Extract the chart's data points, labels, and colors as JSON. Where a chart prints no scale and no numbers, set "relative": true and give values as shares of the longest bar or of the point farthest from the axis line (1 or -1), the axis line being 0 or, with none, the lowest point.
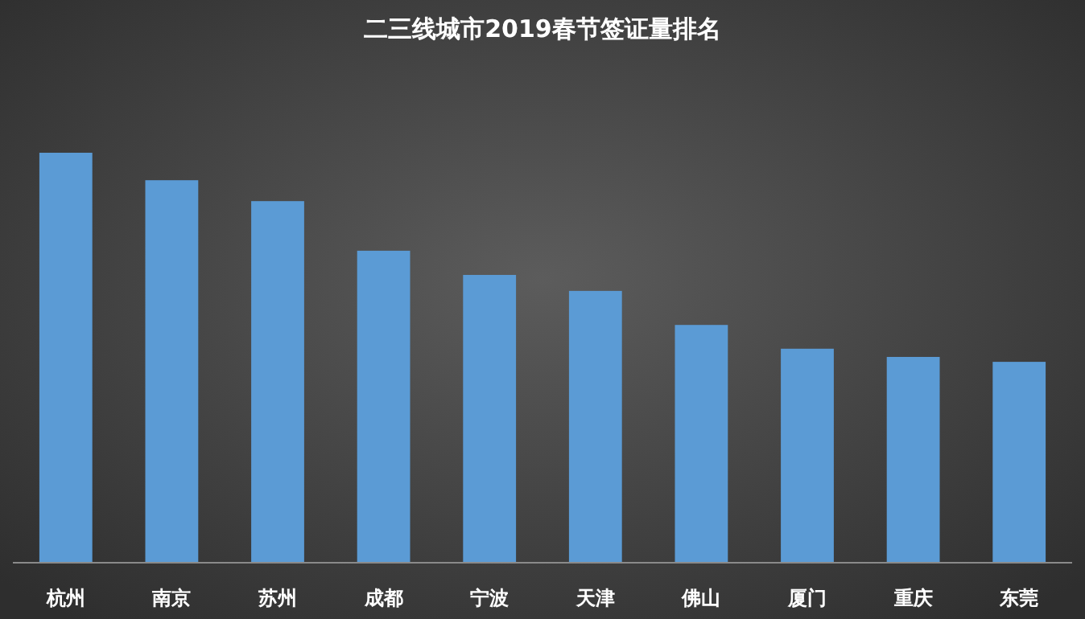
{
  "chart_data": {
    "type": "bar",
    "title": "二三线城市2019春节签证量排名",
    "relative": true,
    "color": "#5b9bd5",
    "categories": [
      "杭州",
      "南京",
      "苏州",
      "成都",
      "宁波",
      "天津",
      "佛山",
      "厦门",
      "重庆",
      "东莞"
    ],
    "values": [
      1,
      0.933,
      0.882,
      0.761,
      0.702,
      0.663,
      0.58,
      0.522,
      0.502,
      0.49
    ]
  }
}
